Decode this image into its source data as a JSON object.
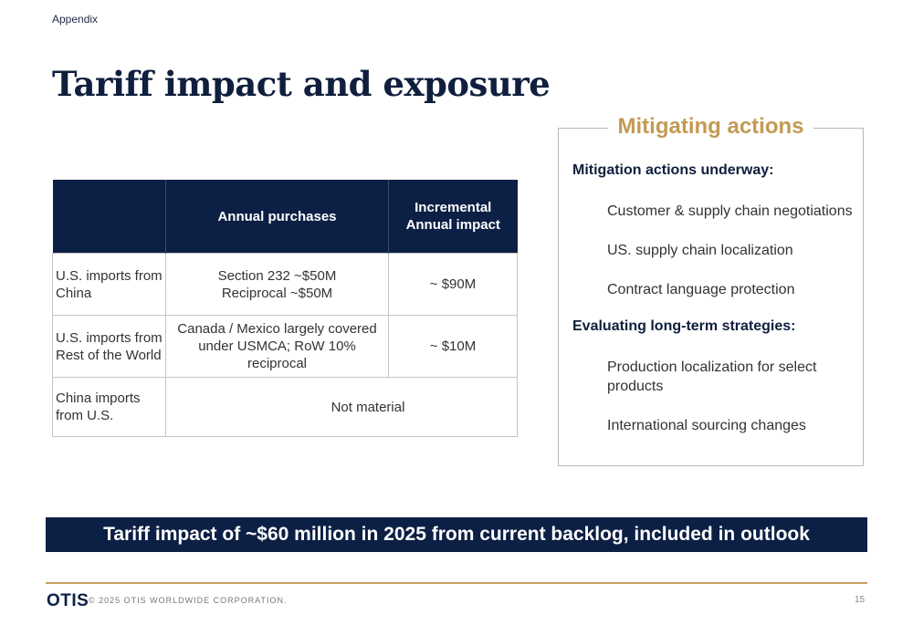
{
  "header": {
    "section_label": "Appendix",
    "title": "Tariff impact and exposure"
  },
  "table": {
    "headers": [
      "",
      "Annual purchases",
      "Incremental\nAnnual impact"
    ],
    "rows": [
      {
        "label": "U.S. imports from China",
        "purchases": "Section 232 ~$50M\nReciprocal ~$50M",
        "impact": "~ $90M"
      },
      {
        "label": "U.S. imports from Rest of the World",
        "purchases": "Canada / Mexico largely covered under USMCA; RoW 10% reciprocal",
        "impact": "~ $10M"
      },
      {
        "label": "China imports from U.S.",
        "merged": "Not material"
      }
    ]
  },
  "mitigating": {
    "title": "Mitigating actions",
    "underway_heading": "Mitigation actions underway:",
    "underway_items": [
      "Customer & supply chain negotiations",
      "US. supply chain localization",
      "Contract language protection"
    ],
    "longterm_heading": "Evaluating long-term strategies:",
    "longterm_items": [
      "Production localization for select products",
      "International sourcing changes"
    ]
  },
  "banner": {
    "text": "Tariff impact of ~$60 million in 2025 from current backlog, included in outlook"
  },
  "footer": {
    "logo": "OTIS",
    "copyright": "© 2025 OTIS WORLDWIDE CORPORATION.",
    "page_number": "15"
  },
  "colors": {
    "navy": "#0c1f44",
    "gold": "#c39a54",
    "rule": "#c7a15f"
  }
}
